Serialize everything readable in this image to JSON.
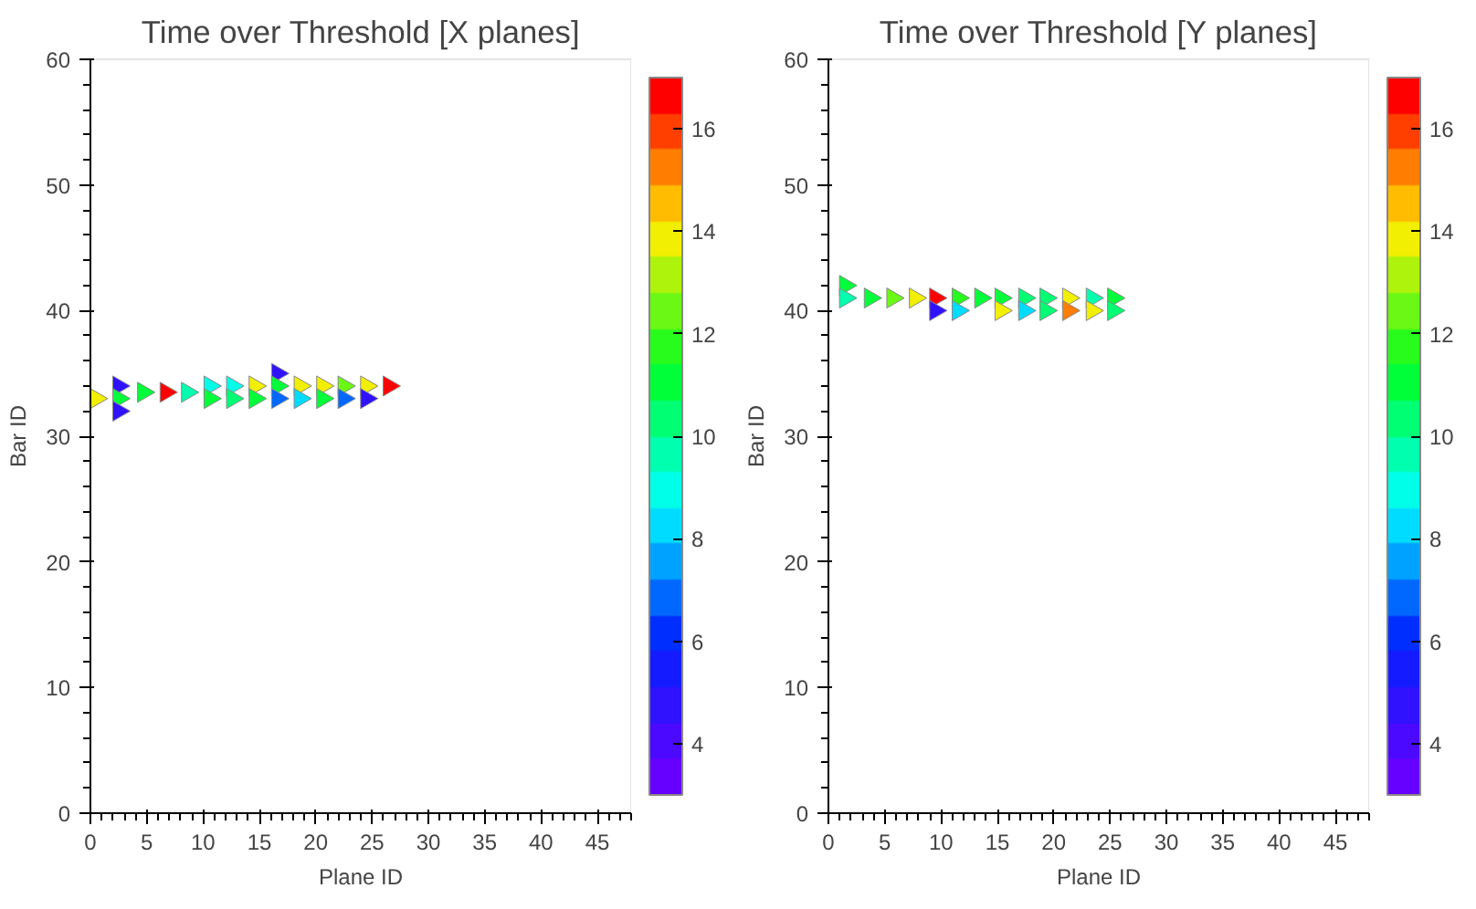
{
  "chart_data": [
    {
      "type": "scatter",
      "title": "Time over Threshold [X planes]",
      "xlabel": "Plane ID",
      "ylabel": "Bar ID",
      "marker": "triangle",
      "grid": false,
      "x": [
        0.5,
        2.5,
        2.5,
        2.5,
        4.7,
        6.7,
        8.6,
        10.6,
        10.6,
        12.6,
        12.6,
        14.6,
        14.6,
        16.6,
        16.6,
        16.6,
        18.6,
        18.6,
        20.6,
        20.6,
        22.5,
        22.5,
        24.5,
        24.5,
        26.5
      ],
      "values": [
        33,
        34,
        33,
        32,
        33.5,
        33.5,
        33.5,
        34,
        33,
        34,
        33,
        34,
        33,
        35,
        34,
        33,
        34,
        33,
        34,
        33,
        34,
        33,
        34,
        33,
        34
      ],
      "cvalues": [
        14,
        5,
        11,
        5,
        11,
        16.5,
        9.5,
        9,
        11,
        9,
        10,
        14,
        11,
        5,
        11,
        7,
        14,
        8.5,
        14,
        11,
        12.5,
        7,
        13.5,
        4.5,
        16.5
      ],
      "clim": [
        3,
        17
      ],
      "cticks": [
        4,
        6,
        8,
        10,
        12,
        14,
        16
      ],
      "xlim": [
        0,
        48
      ],
      "xticks": [
        0,
        5,
        10,
        15,
        20,
        25,
        30,
        35,
        40,
        45
      ],
      "ylim": [
        0,
        60
      ],
      "yticks": [
        0,
        10,
        20,
        30,
        40,
        50,
        60
      ]
    },
    {
      "type": "scatter",
      "title": "Time over Threshold [Y planes]",
      "xlabel": "Plane ID",
      "ylabel": "Bar ID",
      "marker": "triangle",
      "grid": false,
      "x": [
        1.5,
        1.5,
        3.7,
        5.7,
        7.7,
        9.5,
        9.5,
        11.5,
        11.5,
        13.5,
        15.3,
        15.3,
        17.4,
        17.4,
        19.3,
        19.3,
        21.3,
        21.3,
        23.4,
        23.4,
        25.3,
        25.3
      ],
      "values": [
        42,
        41,
        41,
        41,
        41,
        41,
        40,
        41,
        40,
        41,
        41,
        40,
        41,
        40,
        41,
        40,
        41,
        40,
        41,
        40,
        41,
        40
      ],
      "cvalues": [
        11,
        9.5,
        11,
        12.5,
        14,
        16.5,
        5,
        12,
        8.5,
        11,
        11,
        14,
        10.5,
        8.5,
        10.5,
        10,
        13.5,
        15.5,
        9.5,
        14,
        11,
        10.5
      ],
      "clim": [
        3,
        17
      ],
      "cticks": [
        4,
        6,
        8,
        10,
        12,
        14,
        16
      ],
      "xlim": [
        0,
        48
      ],
      "xticks": [
        0,
        5,
        10,
        15,
        20,
        25,
        30,
        35,
        40,
        45
      ],
      "ylim": [
        0,
        60
      ],
      "yticks": [
        0,
        10,
        20,
        30,
        40,
        50,
        60
      ]
    }
  ]
}
